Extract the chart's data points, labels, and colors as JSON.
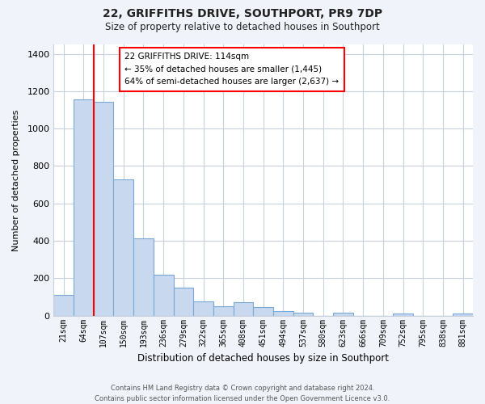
{
  "title": "22, GRIFFITHS DRIVE, SOUTHPORT, PR9 7DP",
  "subtitle": "Size of property relative to detached houses in Southport",
  "xlabel": "Distribution of detached houses by size in Southport",
  "ylabel": "Number of detached properties",
  "bar_labels": [
    "21sqm",
    "64sqm",
    "107sqm",
    "150sqm",
    "193sqm",
    "236sqm",
    "279sqm",
    "322sqm",
    "365sqm",
    "408sqm",
    "451sqm",
    "494sqm",
    "537sqm",
    "580sqm",
    "623sqm",
    "666sqm",
    "709sqm",
    "752sqm",
    "795sqm",
    "838sqm",
    "881sqm"
  ],
  "bar_values": [
    110,
    1155,
    1145,
    730,
    415,
    220,
    150,
    75,
    50,
    70,
    45,
    25,
    15,
    0,
    15,
    0,
    0,
    10,
    0,
    0,
    10
  ],
  "bar_color_fill": "#c8d8ee",
  "bar_color_edge": "#7aa8d4",
  "red_line_index": 2,
  "ylim": [
    0,
    1450
  ],
  "yticks": [
    0,
    200,
    400,
    600,
    800,
    1000,
    1200,
    1400
  ],
  "annotation_title": "22 GRIFFITHS DRIVE: 114sqm",
  "annotation_line1": "← 35% of detached houses are smaller (1,445)",
  "annotation_line2": "64% of semi-detached houses are larger (2,637) →",
  "footer1": "Contains HM Land Registry data © Crown copyright and database right 2024.",
  "footer2": "Contains public sector information licensed under the Open Government Licence v3.0.",
  "bg_color": "#f0f4fa",
  "plot_bg_color": "#ffffff",
  "grid_color": "#c8d0dc"
}
